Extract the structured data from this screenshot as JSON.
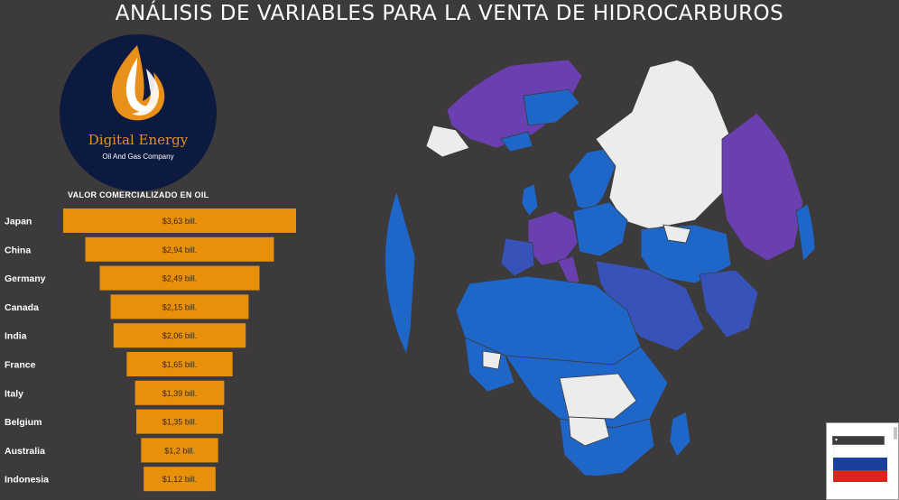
{
  "header": {
    "title": "ANÁLISIS DE VARIABLES PARA LA VENTA DE HIDROCARBUROS"
  },
  "logo": {
    "name": "Digital Energy",
    "subtitle": "Oil And Gas Company"
  },
  "chart_data": {
    "type": "bar",
    "title": "VALOR COMERCIALIZADO EN OIL",
    "orientation": "horizontal-centered-funnel",
    "categories": [
      "Japan",
      "China",
      "Germany",
      "Canada",
      "India",
      "France",
      "Italy",
      "Belgium",
      "Australia",
      "Indonesia"
    ],
    "values": [
      3.63,
      2.94,
      2.49,
      2.15,
      2.06,
      1.65,
      1.39,
      1.35,
      1.2,
      1.12
    ],
    "data_labels": [
      "$3,63 bill.",
      "$2,94 bill.",
      "$2,49 bill.",
      "$2,15 bill.",
      "$2,06 bill.",
      "$1,65 bill.",
      "$1,39 bill.",
      "$1,35 bill.",
      "$1,2 bill.",
      "$1,12 bill."
    ],
    "bar_color": "#e8900c"
  },
  "map": {
    "colors": {
      "ocean": "#3c3a3a",
      "land_default": "#1f66c9",
      "land_high": "#6a3fb0",
      "land_nodata": "#ececec",
      "land_mid": "#3752b8"
    }
  },
  "slicer": {
    "caret": "▾",
    "selected_flag": "russia-flag-icon"
  },
  "flag_colors": [
    "#ffffff",
    "#1b3f9e",
    "#d5281d"
  ]
}
